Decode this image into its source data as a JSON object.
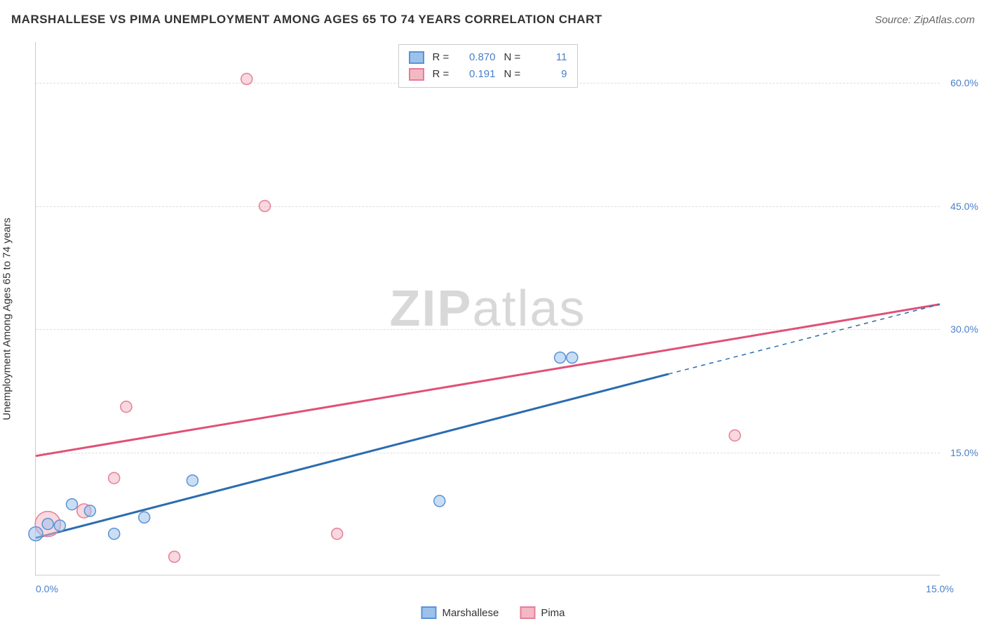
{
  "header": {
    "title": "MARSHALLESE VS PIMA UNEMPLOYMENT AMONG AGES 65 TO 74 YEARS CORRELATION CHART",
    "source": "Source: ZipAtlas.com"
  },
  "axes": {
    "y_label": "Unemployment Among Ages 65 to 74 years",
    "x_min": 0,
    "x_max": 15,
    "y_min": 0,
    "y_max": 65,
    "y_ticks": [
      15,
      30,
      45,
      60
    ],
    "y_tick_labels": [
      "15.0%",
      "30.0%",
      "45.0%",
      "60.0%"
    ],
    "x_tick_left": "0.0%",
    "x_tick_right": "15.0%",
    "tick_color": "#4a7fc9",
    "grid_color": "#dddddd"
  },
  "watermark": {
    "bold": "ZIP",
    "light": "atlas",
    "color": "#d8d8d8"
  },
  "series": {
    "marshallese": {
      "label": "Marshallese",
      "fill": "#9cc2ec",
      "stroke": "#5a93d4",
      "line_color": "#2b6cb0",
      "r_value": "0.870",
      "n_value": "11",
      "points": [
        {
          "x": 0.0,
          "y": 5.0,
          "r": 10
        },
        {
          "x": 0.2,
          "y": 6.2,
          "r": 8
        },
        {
          "x": 0.6,
          "y": 8.6,
          "r": 8
        },
        {
          "x": 0.9,
          "y": 7.8,
          "r": 8
        },
        {
          "x": 1.3,
          "y": 5.0,
          "r": 8
        },
        {
          "x": 1.8,
          "y": 7.0,
          "r": 8
        },
        {
          "x": 2.6,
          "y": 11.5,
          "r": 8
        },
        {
          "x": 6.7,
          "y": 9.0,
          "r": 8
        },
        {
          "x": 8.7,
          "y": 26.5,
          "r": 8
        },
        {
          "x": 8.9,
          "y": 26.5,
          "r": 8
        },
        {
          "x": 0.4,
          "y": 6.0,
          "r": 8
        }
      ],
      "trend": {
        "x1": 0,
        "y1": 4.5,
        "x2": 10.5,
        "y2": 24.5,
        "dash_x2": 15,
        "dash_y2": 33
      }
    },
    "pima": {
      "label": "Pima",
      "fill": "#f4b8c5",
      "stroke": "#e77d98",
      "line_color": "#e05076",
      "r_value": "0.191",
      "n_value": "9",
      "points": [
        {
          "x": 0.2,
          "y": 6.2,
          "r": 18
        },
        {
          "x": 0.8,
          "y": 7.8,
          "r": 10
        },
        {
          "x": 1.3,
          "y": 11.8,
          "r": 8
        },
        {
          "x": 2.3,
          "y": 2.2,
          "r": 8
        },
        {
          "x": 1.5,
          "y": 20.5,
          "r": 8
        },
        {
          "x": 5.0,
          "y": 5.0,
          "r": 8
        },
        {
          "x": 3.5,
          "y": 60.5,
          "r": 8
        },
        {
          "x": 3.8,
          "y": 45.0,
          "r": 8
        },
        {
          "x": 11.6,
          "y": 17.0,
          "r": 8
        }
      ],
      "trend": {
        "x1": 0,
        "y1": 14.5,
        "x2": 15,
        "y2": 33
      }
    }
  },
  "stats_box": {
    "r_prefix": "R =",
    "n_prefix": "N ="
  },
  "legend": {
    "items": [
      {
        "key": "marshallese"
      },
      {
        "key": "pima"
      }
    ]
  }
}
